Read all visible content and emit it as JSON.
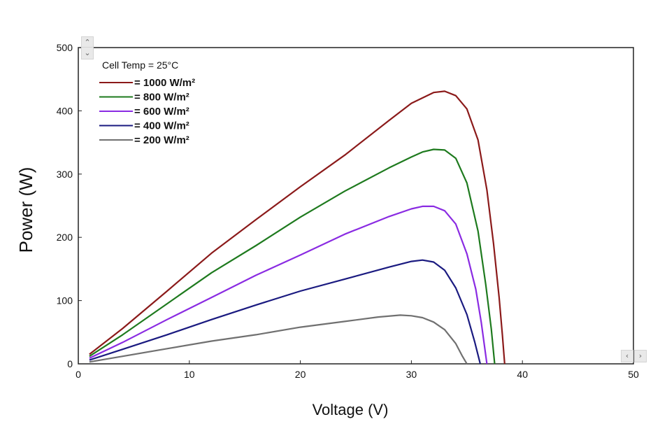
{
  "chart_data": {
    "type": "line",
    "title": "",
    "xlabel": "Voltage (V)",
    "ylabel": "Power (W)",
    "xlim": [
      0,
      50
    ],
    "ylim": [
      0,
      500
    ],
    "xticks": [
      0,
      10,
      20,
      30,
      40,
      50
    ],
    "yticks": [
      0,
      100,
      200,
      300,
      400,
      500
    ],
    "grid": false,
    "legend": {
      "position": "top-left",
      "title": "Cell Temp = 25°C"
    },
    "series": [
      {
        "name": "= 1000 W/m²",
        "color": "#8b1a1a",
        "points": [
          [
            1,
            15
          ],
          [
            4,
            56
          ],
          [
            8,
            115
          ],
          [
            12,
            175
          ],
          [
            16,
            228
          ],
          [
            20,
            280
          ],
          [
            24,
            330
          ],
          [
            28,
            385
          ],
          [
            30,
            412
          ],
          [
            32,
            429
          ],
          [
            33,
            431
          ],
          [
            34,
            424
          ],
          [
            35,
            403
          ],
          [
            36,
            354
          ],
          [
            36.8,
            275
          ],
          [
            37.4,
            190
          ],
          [
            37.9,
            105
          ],
          [
            38.2,
            45
          ],
          [
            38.4,
            0
          ]
        ]
      },
      {
        "name": "= 800 W/m²",
        "color": "#1e7a1e",
        "points": [
          [
            1,
            12
          ],
          [
            4,
            46
          ],
          [
            8,
            95
          ],
          [
            12,
            144
          ],
          [
            16,
            187
          ],
          [
            20,
            232
          ],
          [
            24,
            273
          ],
          [
            28,
            310
          ],
          [
            30,
            327
          ],
          [
            31,
            335
          ],
          [
            32,
            339
          ],
          [
            33,
            338
          ],
          [
            34,
            325
          ],
          [
            35,
            286
          ],
          [
            36,
            210
          ],
          [
            36.7,
            125
          ],
          [
            37.2,
            55
          ],
          [
            37.5,
            0
          ]
        ]
      },
      {
        "name": "= 600 W/m²",
        "color": "#8a2be2",
        "points": [
          [
            1,
            9
          ],
          [
            4,
            34
          ],
          [
            8,
            70
          ],
          [
            12,
            105
          ],
          [
            16,
            140
          ],
          [
            20,
            172
          ],
          [
            24,
            205
          ],
          [
            28,
            233
          ],
          [
            30,
            245
          ],
          [
            31,
            249
          ],
          [
            32,
            249
          ],
          [
            33,
            242
          ],
          [
            34,
            221
          ],
          [
            35,
            174
          ],
          [
            35.8,
            118
          ],
          [
            36.3,
            65
          ],
          [
            36.8,
            0
          ]
        ]
      },
      {
        "name": "= 400 W/m²",
        "color": "#1a1a80",
        "points": [
          [
            1,
            6
          ],
          [
            4,
            23
          ],
          [
            8,
            46
          ],
          [
            12,
            70
          ],
          [
            16,
            93
          ],
          [
            20,
            115
          ],
          [
            24,
            134
          ],
          [
            28,
            153
          ],
          [
            30,
            162
          ],
          [
            31,
            164
          ],
          [
            32,
            161
          ],
          [
            33,
            148
          ],
          [
            34,
            120
          ],
          [
            35,
            78
          ],
          [
            35.7,
            35
          ],
          [
            36.2,
            0
          ]
        ]
      },
      {
        "name": "= 200 W/m²",
        "color": "#707070",
        "points": [
          [
            1,
            3
          ],
          [
            4,
            12
          ],
          [
            8,
            24
          ],
          [
            12,
            36
          ],
          [
            16,
            46
          ],
          [
            20,
            58
          ],
          [
            24,
            67
          ],
          [
            27,
            74
          ],
          [
            29,
            77
          ],
          [
            30,
            76
          ],
          [
            31,
            73
          ],
          [
            32,
            66
          ],
          [
            33,
            54
          ],
          [
            34,
            32
          ],
          [
            34.6,
            12
          ],
          [
            35,
            0
          ]
        ]
      }
    ]
  }
}
